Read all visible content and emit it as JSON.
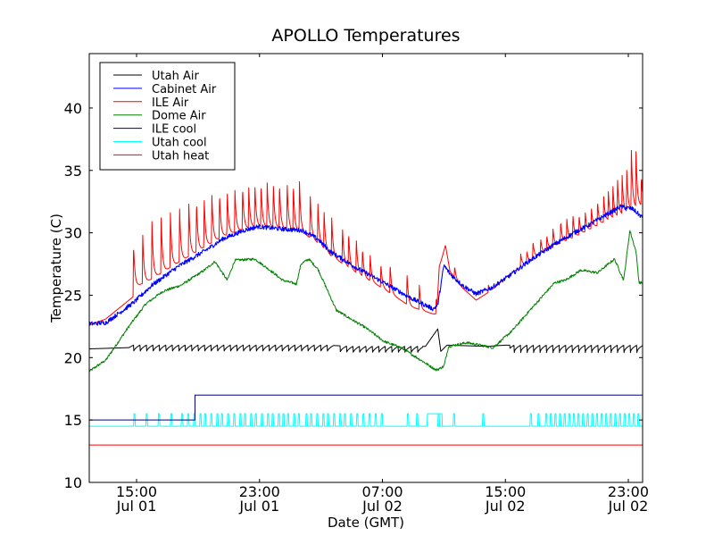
{
  "chart_data": {
    "type": "line",
    "title": "APOLLO Temperatures",
    "xlabel": "Date (GMT)",
    "ylabel": "Temperature (C)",
    "x_units": "hours since Jul 01 00:00 GMT",
    "xlim": [
      11.92,
      47.93
    ],
    "ylim": [
      10,
      44.36
    ],
    "grid": false,
    "legend_placement": "top-left",
    "y_ticks": [
      {
        "value": 10,
        "label": "10"
      },
      {
        "value": 15,
        "label": "15"
      },
      {
        "value": 20,
        "label": "20"
      },
      {
        "value": 25,
        "label": "25"
      },
      {
        "value": 30,
        "label": "30"
      },
      {
        "value": 35,
        "label": "35"
      },
      {
        "value": 40,
        "label": "40"
      }
    ],
    "x_ticks": [
      {
        "value": 15,
        "time": "15:00",
        "date": "Jul 01"
      },
      {
        "value": 23,
        "time": "23:00",
        "date": "Jul 01"
      },
      {
        "value": 31,
        "time": "07:00",
        "date": "Jul 02"
      },
      {
        "value": 39,
        "time": "15:00",
        "date": "Jul 02"
      },
      {
        "value": 47,
        "time": "23:00",
        "date": "Jul 02"
      }
    ],
    "series": [
      {
        "name": "Utah Air",
        "color": "#000000",
        "kind": "sawtooth",
        "base": [
          [
            11.92,
            20.7
          ],
          [
            14.5,
            20.8
          ],
          [
            14.8,
            21.0
          ],
          [
            27.3,
            21.0
          ],
          [
            29.0,
            20.9
          ],
          [
            33.8,
            20.9
          ],
          [
            34.6,
            22.3
          ],
          [
            34.8,
            20.5
          ],
          [
            35.2,
            21.0
          ],
          [
            37.8,
            20.9
          ],
          [
            39.0,
            21.0
          ],
          [
            47.93,
            21.0
          ]
        ],
        "sawtooth_ranges": [
          [
            14.8,
            27.8
          ],
          [
            28.2,
            33.6
          ],
          [
            39.3,
            47.93
          ]
        ],
        "sawtooth_period": 0.42,
        "sawtooth_drop": 0.6
      },
      {
        "name": "Cabinet Air",
        "color": "#0000ff",
        "kind": "noisy",
        "points": [
          [
            11.92,
            22.7
          ],
          [
            13.0,
            22.8
          ],
          [
            14.8,
            24.4
          ],
          [
            16.0,
            25.8
          ],
          [
            17.7,
            27.3
          ],
          [
            19.5,
            28.6
          ],
          [
            20.6,
            29.5
          ],
          [
            22.0,
            30.2
          ],
          [
            22.9,
            30.5
          ],
          [
            24.5,
            30.3
          ],
          [
            25.8,
            30.2
          ],
          [
            26.8,
            29.5
          ],
          [
            27.6,
            28.5
          ],
          [
            29.3,
            27.2
          ],
          [
            31.1,
            26.0
          ],
          [
            32.8,
            24.8
          ],
          [
            34.3,
            23.9
          ],
          [
            34.6,
            24.2
          ],
          [
            35.0,
            27.4
          ],
          [
            35.4,
            26.7
          ],
          [
            36.2,
            25.8
          ],
          [
            37.1,
            25.1
          ],
          [
            38.1,
            25.6
          ],
          [
            39.2,
            26.5
          ],
          [
            40.5,
            27.7
          ],
          [
            42.1,
            29.0
          ],
          [
            43.6,
            30.1
          ],
          [
            44.4,
            30.6
          ],
          [
            45.5,
            31.4
          ],
          [
            46.5,
            32.1
          ],
          [
            47.3,
            31.9
          ],
          [
            47.93,
            31.2
          ]
        ],
        "noise": 0.18
      },
      {
        "name": "ILE Air",
        "color": "#ff0000",
        "kind": "spikes",
        "base": [
          [
            11.92,
            22.6
          ],
          [
            13.0,
            23.1
          ],
          [
            14.8,
            24.9
          ],
          [
            14.82,
            25.6
          ],
          [
            16.0,
            26.3
          ],
          [
            17.7,
            27.6
          ],
          [
            19.5,
            28.9
          ],
          [
            20.6,
            29.7
          ],
          [
            22.0,
            30.3
          ],
          [
            22.9,
            30.5
          ],
          [
            24.5,
            30.3
          ],
          [
            25.8,
            30.0
          ],
          [
            26.8,
            29.2
          ],
          [
            27.6,
            28.2
          ],
          [
            29.3,
            26.8
          ],
          [
            31.1,
            25.5
          ],
          [
            32.8,
            24.1
          ],
          [
            34.3,
            23.5
          ],
          [
            34.55,
            23.5
          ],
          [
            34.7,
            27.2
          ],
          [
            35.1,
            29.0
          ],
          [
            35.4,
            26.9
          ],
          [
            36.2,
            25.6
          ],
          [
            37.1,
            24.6
          ],
          [
            38.1,
            25.4
          ],
          [
            39.2,
            26.6
          ],
          [
            40.5,
            27.7
          ],
          [
            42.1,
            28.9
          ],
          [
            43.6,
            29.7
          ],
          [
            44.4,
            30.2
          ],
          [
            45.5,
            30.9
          ],
          [
            46.5,
            31.4
          ],
          [
            47.93,
            32.2
          ]
        ],
        "spike_peaks": [
          [
            14.8,
            28.6
          ],
          [
            15.4,
            29.8
          ],
          [
            16.0,
            30.9
          ],
          [
            16.6,
            31.2
          ],
          [
            17.2,
            31.6
          ],
          [
            17.8,
            31.9
          ],
          [
            18.4,
            32.3
          ],
          [
            18.9,
            32.5
          ],
          [
            19.4,
            32.8
          ],
          [
            19.9,
            33.0
          ],
          [
            20.4,
            33.1
          ],
          [
            20.9,
            33.3
          ],
          [
            21.4,
            33.4
          ],
          [
            21.9,
            33.6
          ],
          [
            22.3,
            33.6
          ],
          [
            22.7,
            33.8
          ],
          [
            23.1,
            33.9
          ],
          [
            23.5,
            34.0
          ],
          [
            23.9,
            33.9
          ],
          [
            24.3,
            33.9
          ],
          [
            24.8,
            34.0
          ],
          [
            25.2,
            33.9
          ],
          [
            25.6,
            34.1
          ],
          [
            26.3,
            33.1
          ],
          [
            26.8,
            32.3
          ],
          [
            27.2,
            31.8
          ],
          [
            27.7,
            31.2
          ],
          [
            28.4,
            30.4
          ],
          [
            28.8,
            30.0
          ],
          [
            29.3,
            29.5
          ],
          [
            29.7,
            28.7
          ],
          [
            30.2,
            28.3
          ],
          [
            30.9,
            27.5
          ],
          [
            31.5,
            27.5
          ],
          [
            32.6,
            26.7
          ],
          [
            33.4,
            25.8
          ],
          [
            34.5,
            24.8
          ],
          [
            35.7,
            27.3
          ],
          [
            37.9,
            25.8
          ],
          [
            39.6,
            26.4
          ],
          [
            40.0,
            28.3
          ],
          [
            40.4,
            28.5
          ],
          [
            40.8,
            29.3
          ],
          [
            41.3,
            29.5
          ],
          [
            41.7,
            29.8
          ],
          [
            42.1,
            30.3
          ],
          [
            42.6,
            30.9
          ],
          [
            43.0,
            31.1
          ],
          [
            43.4,
            31.4
          ],
          [
            43.8,
            31.4
          ],
          [
            44.2,
            31.6
          ],
          [
            44.6,
            32.0
          ],
          [
            45.0,
            32.5
          ],
          [
            45.4,
            32.9
          ],
          [
            45.7,
            33.3
          ],
          [
            46.0,
            33.7
          ],
          [
            46.3,
            34.2
          ],
          [
            46.6,
            34.6
          ],
          [
            46.9,
            35.0
          ],
          [
            47.2,
            36.6
          ],
          [
            47.5,
            36.5
          ],
          [
            47.85,
            34.5
          ]
        ]
      },
      {
        "name": "Dome Air",
        "color": "#008000",
        "kind": "noisy",
        "points": [
          [
            11.92,
            18.9
          ],
          [
            13.0,
            19.8
          ],
          [
            14.5,
            22.5
          ],
          [
            15.6,
            24.3
          ],
          [
            16.7,
            25.3
          ],
          [
            17.9,
            25.8
          ],
          [
            19.4,
            27.0
          ],
          [
            20.1,
            27.7
          ],
          [
            20.9,
            26.2
          ],
          [
            21.4,
            27.8
          ],
          [
            22.7,
            27.9
          ],
          [
            23.9,
            26.8
          ],
          [
            24.5,
            26.2
          ],
          [
            25.4,
            25.9
          ],
          [
            25.7,
            27.5
          ],
          [
            26.2,
            27.9
          ],
          [
            26.8,
            27.1
          ],
          [
            27.2,
            26.0
          ],
          [
            28.0,
            23.8
          ],
          [
            28.8,
            23.2
          ],
          [
            29.9,
            22.4
          ],
          [
            31.1,
            21.3
          ],
          [
            32.2,
            20.8
          ],
          [
            33.5,
            19.8
          ],
          [
            34.5,
            19.0
          ],
          [
            35.0,
            19.3
          ],
          [
            35.3,
            20.9
          ],
          [
            36.5,
            21.2
          ],
          [
            38.2,
            20.8
          ],
          [
            39.4,
            22.1
          ],
          [
            40.6,
            23.8
          ],
          [
            42.2,
            26.0
          ],
          [
            42.9,
            26.2
          ],
          [
            43.9,
            27.0
          ],
          [
            45.0,
            26.8
          ],
          [
            46.1,
            27.9
          ],
          [
            46.7,
            26.2
          ],
          [
            47.1,
            30.2
          ],
          [
            47.5,
            28.5
          ],
          [
            47.7,
            26.0
          ],
          [
            47.93,
            26.0
          ]
        ],
        "noise": 0.25
      },
      {
        "name": "ILE cool",
        "color": "#000080",
        "kind": "step",
        "points": [
          [
            11.92,
            15.0
          ],
          [
            18.8,
            15.0
          ],
          [
            18.8,
            17.0
          ],
          [
            47.93,
            17.0
          ]
        ]
      },
      {
        "name": "Utah cool",
        "color": "#00ffff",
        "kind": "pulses",
        "low": 14.5,
        "high": 15.5,
        "pulse_starts": [
          14.8,
          15.6,
          16.4,
          17.2,
          17.9,
          18.3,
          18.7,
          19.1,
          19.4,
          19.8,
          20.2,
          20.5,
          20.9,
          21.3,
          21.7,
          22.0,
          22.4,
          22.7,
          23.1,
          23.5,
          23.8,
          24.2,
          24.5,
          24.8,
          25.2,
          25.5,
          26.0,
          26.3,
          26.7,
          27.1,
          27.4,
          27.8,
          28.2,
          28.5,
          28.9,
          29.3,
          29.7,
          30.1,
          30.5,
          30.9,
          32.6,
          33.2,
          34.6,
          35.6,
          37.5,
          40.6,
          41.1,
          41.6,
          41.9,
          42.2,
          42.5,
          42.8,
          43.1,
          43.4,
          43.7,
          44.0,
          44.3,
          44.6,
          44.9,
          45.2,
          45.5,
          45.8,
          46.1,
          46.4,
          46.7,
          47.0,
          47.3,
          47.6
        ],
        "pulse_width": 0.12,
        "wide_pulses": [
          [
            33.9,
            34.9
          ]
        ]
      },
      {
        "name": "Utah heat",
        "color": "#ff0000",
        "kind": "flat",
        "points": [
          [
            11.92,
            13.0
          ],
          [
            47.93,
            13.0
          ]
        ]
      }
    ]
  }
}
